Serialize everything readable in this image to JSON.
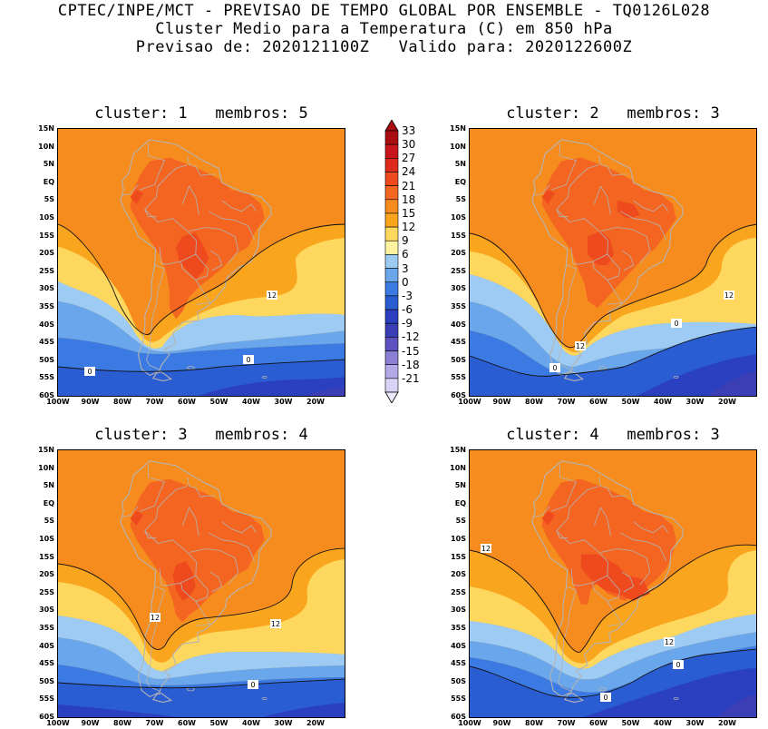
{
  "header": {
    "line1": "CPTEC/INPE/MCT - PREVISAO DE TEMPO GLOBAL POR ENSEMBLE - TQ0126L028",
    "line2": "Cluster Medio para a Temperatura (C) em 850 hPa",
    "line3": "Previsao de: 2020121100Z   Valido para: 2020122600Z"
  },
  "axes": {
    "lat_labels": [
      "15N",
      "10N",
      "5N",
      "EQ",
      "5S",
      "10S",
      "15S",
      "20S",
      "25S",
      "30S",
      "35S",
      "40S",
      "45S",
      "50S",
      "55S",
      "60S"
    ],
    "lon_labels": [
      "100W",
      "90W",
      "80W",
      "70W",
      "60W",
      "50W",
      "40W",
      "30W",
      "20W"
    ]
  },
  "colorbar": {
    "labels": [
      "33",
      "30",
      "27",
      "24",
      "21",
      "18",
      "15",
      "12",
      "9",
      "6",
      "3",
      "0",
      "-3",
      "-6",
      "-9",
      "-12",
      "-15",
      "-18",
      "-21"
    ],
    "colors": [
      "#a80d12",
      "#c8161c",
      "#dd2a1c",
      "#ee4a1d",
      "#f36521",
      "#f78c1e",
      "#faa51e",
      "#fed85e",
      "#fff3a0",
      "#9dcbf3",
      "#6aa6eb",
      "#3c7ae3",
      "#2a5cd2",
      "#2a40c0",
      "#3a3fb6",
      "#5d52c0",
      "#8b7fd4",
      "#b3a9e6",
      "#d9d2f5"
    ]
  },
  "panels": [
    {
      "title": "cluster: 1   membros: 5",
      "contour_labels": [
        "12",
        "0",
        "0"
      ]
    },
    {
      "title": "cluster: 2   membros: 3",
      "contour_labels": [
        "12",
        "12",
        "0",
        "0"
      ]
    },
    {
      "title": "cluster: 3   membros: 4",
      "contour_labels": [
        "12",
        "12",
        "0"
      ]
    },
    {
      "title": "cluster: 4   membros: 3",
      "contour_labels": [
        "12",
        "12",
        "0",
        "0"
      ]
    }
  ]
}
